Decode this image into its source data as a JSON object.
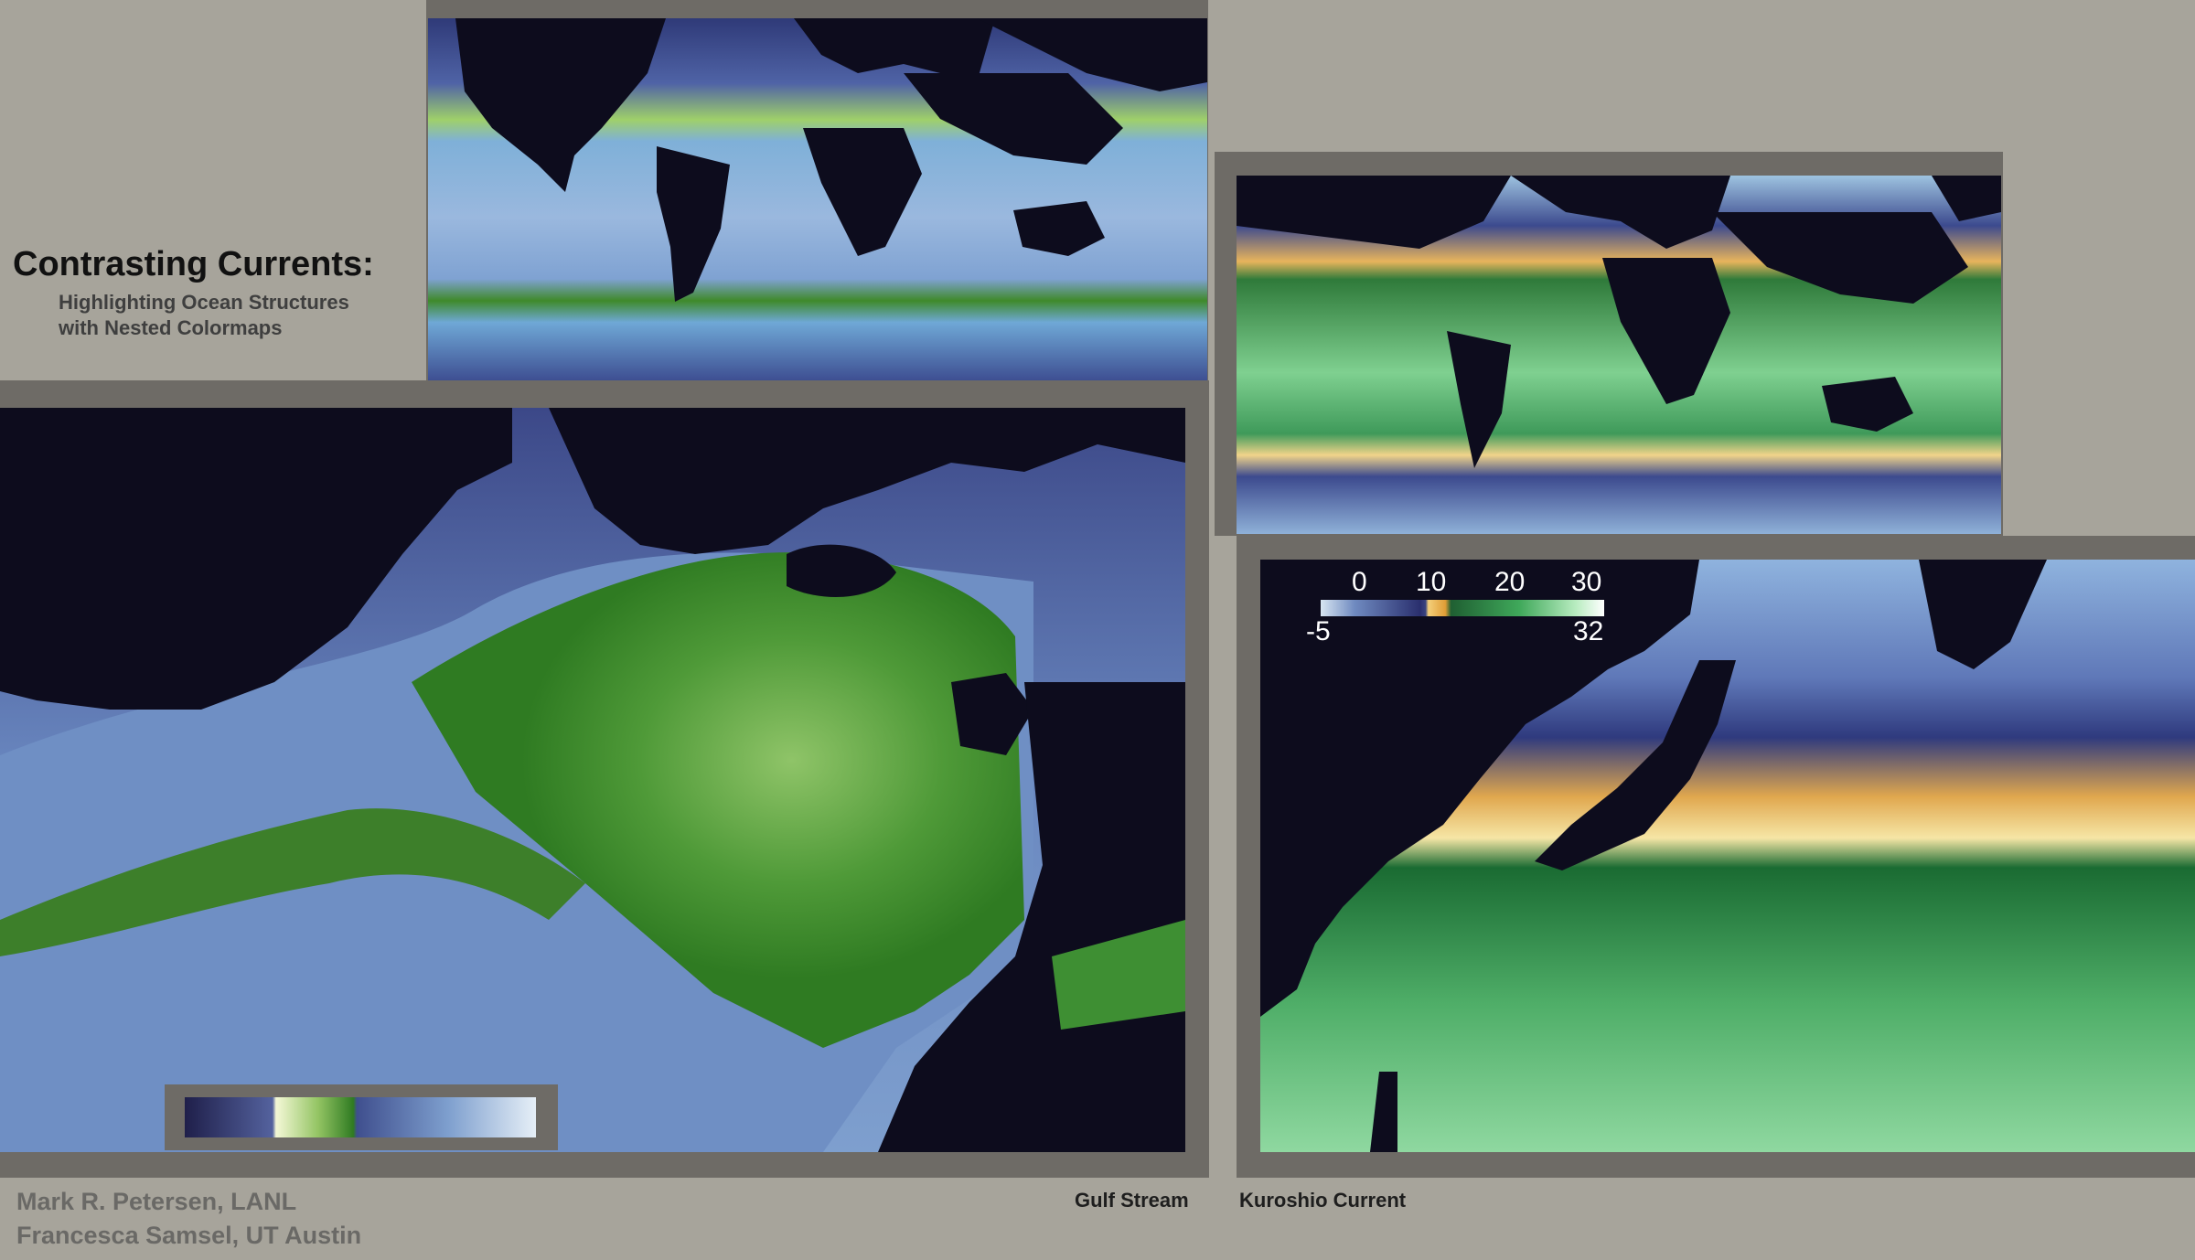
{
  "title": "Contrasting Currents:",
  "subtitle_lines": [
    "Highlighting Ocean Structures",
    "with Nested Colormaps"
  ],
  "credits": [
    "Mark R. Petersen, LANL",
    "Francesca Samsel, UT Austin"
  ],
  "captions": {
    "gulf_stream": "Gulf Stream",
    "kuroshio": "Kuroshio Current"
  },
  "colorbar": {
    "ticks_top": [
      "0",
      "10",
      "20",
      "30"
    ],
    "min_label": "-5",
    "max_label": "32"
  },
  "colors": {
    "background": "#a7a49b",
    "frame": "#6e6b66",
    "land": "#0d0c1d",
    "ocean_blue": "#6f8fc0",
    "ocean_green": "#3f8a3c",
    "ocean_yellow": "#e7b95a"
  }
}
